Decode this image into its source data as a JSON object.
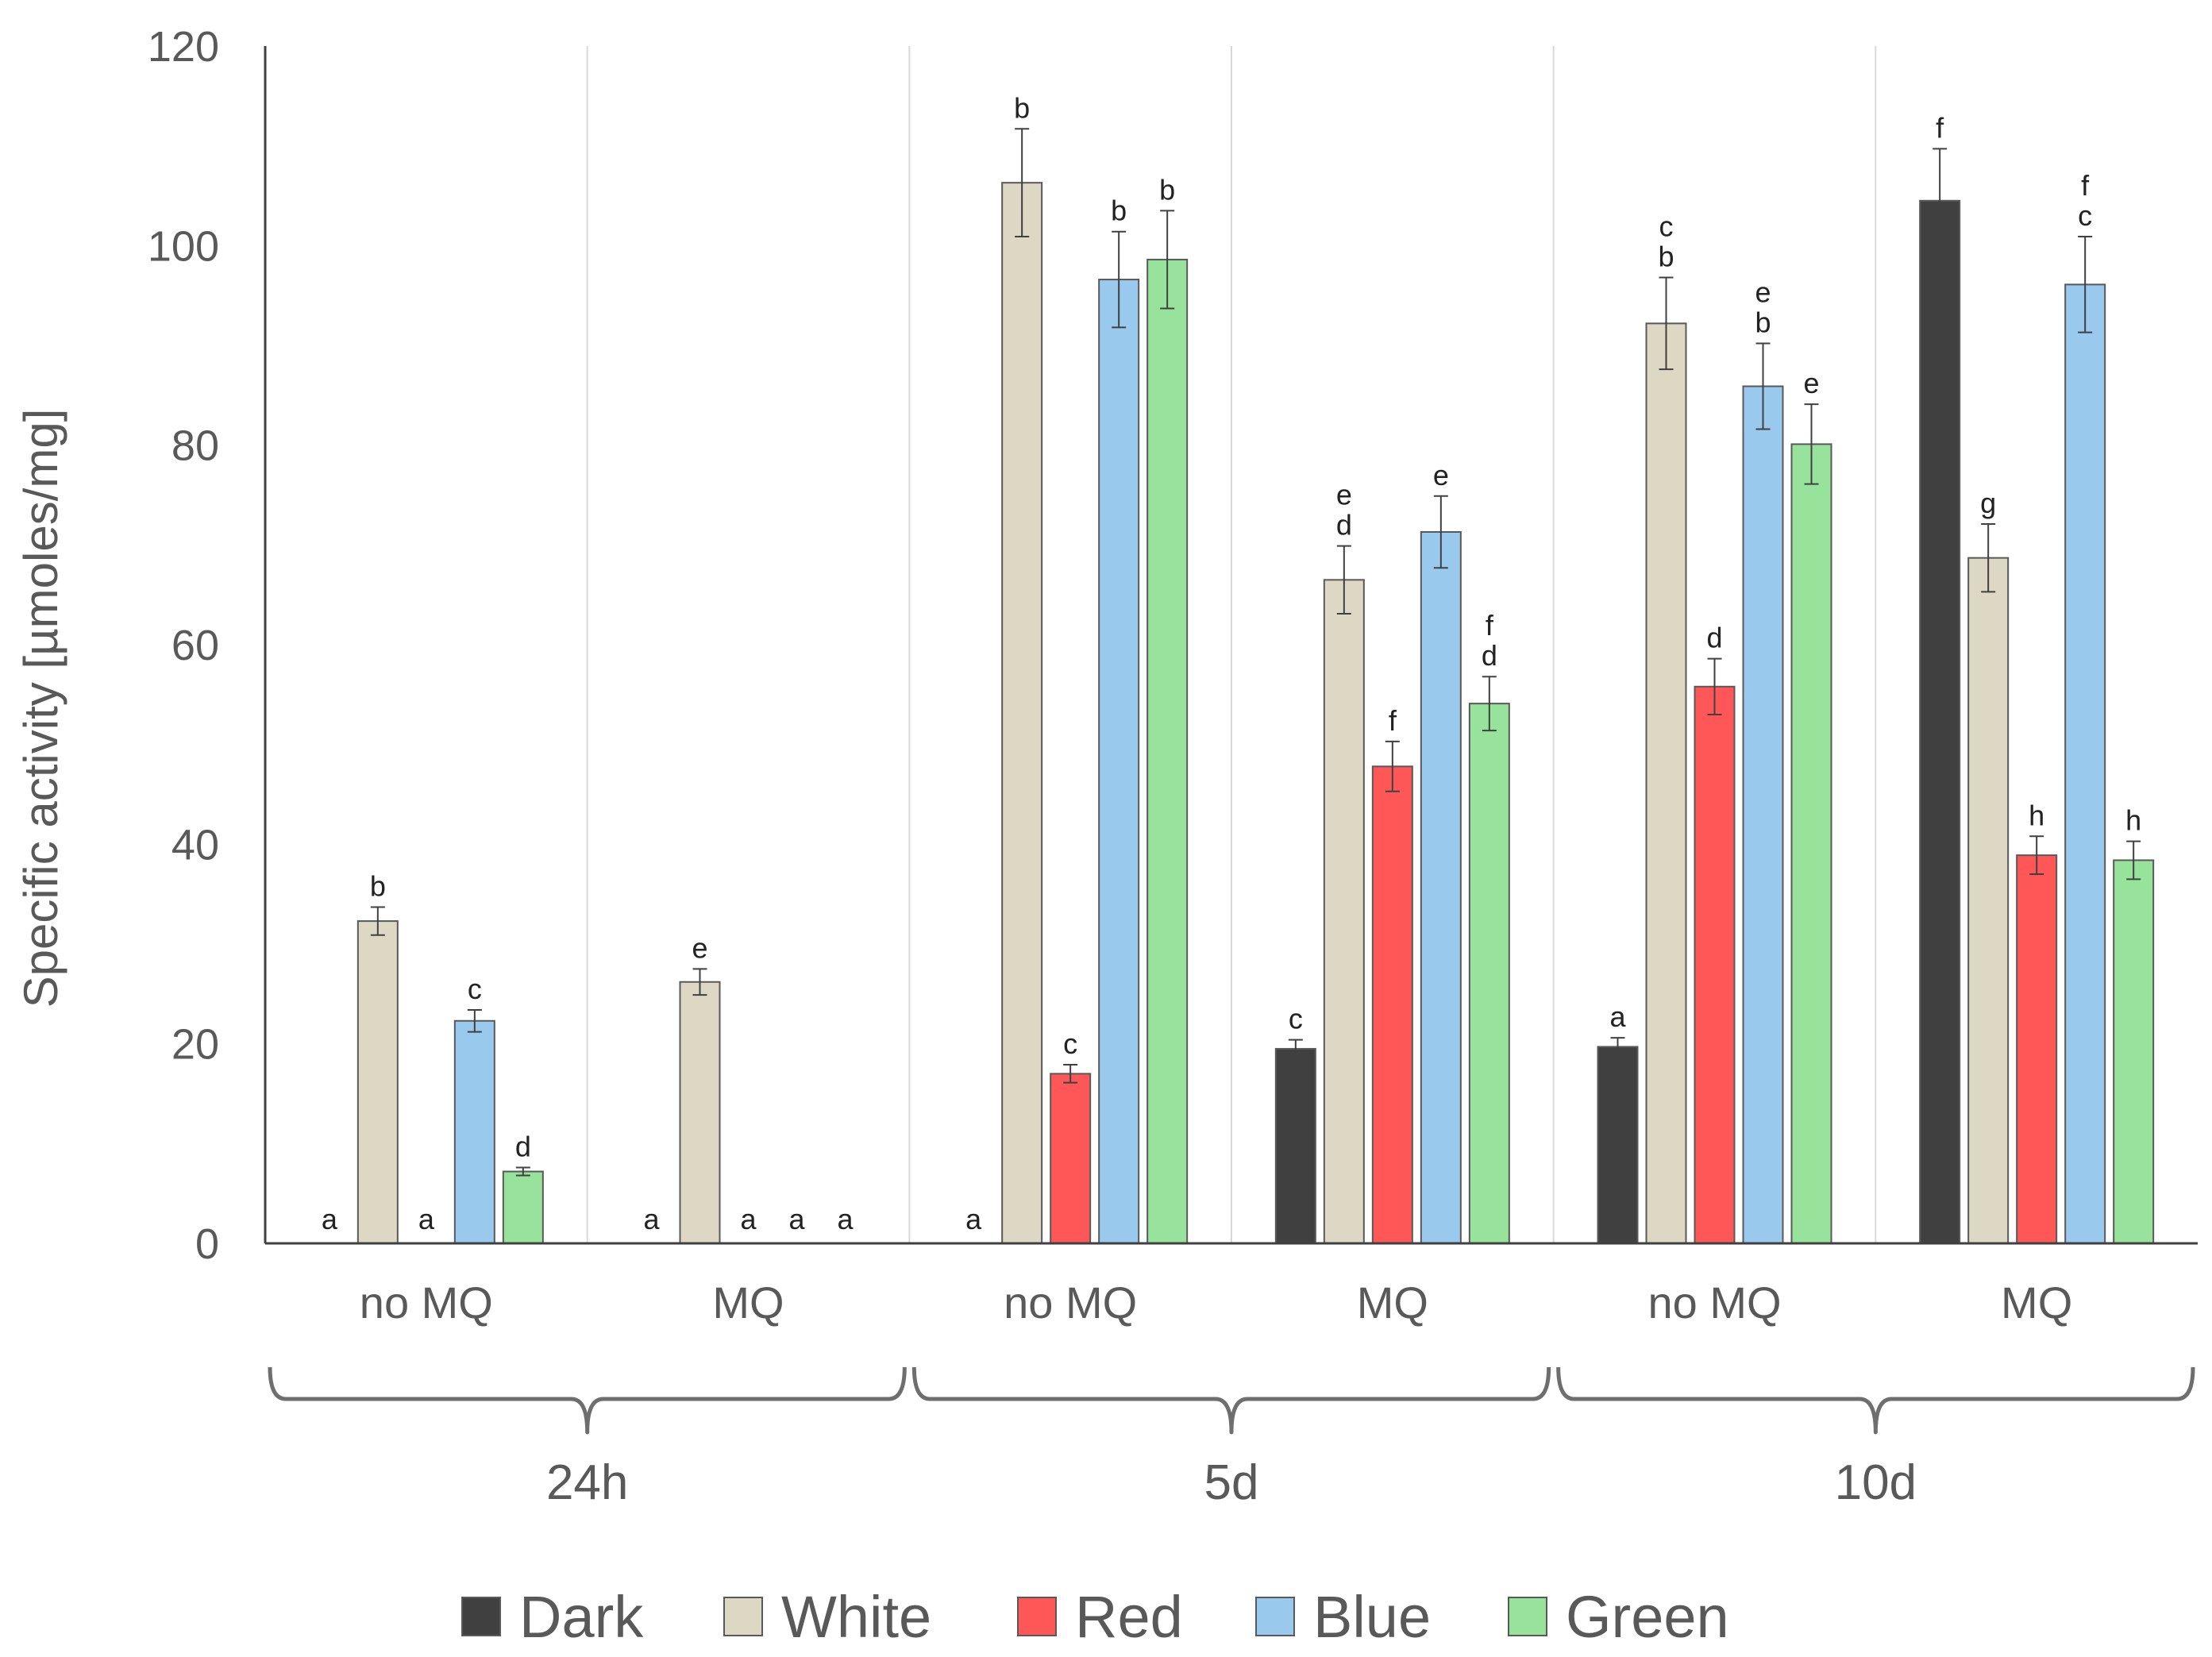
{
  "chart_data": {
    "type": "bar",
    "title": "",
    "xlabel": "",
    "ylabel": "Specific activity [µmoles/mg]",
    "ylim": [
      0,
      120
    ],
    "yticks": [
      0,
      20,
      40,
      60,
      80,
      100,
      120
    ],
    "grid": "vertical separators between groups",
    "legend_position": "bottom",
    "colors": {
      "Dark": "#404040",
      "White": "#ddd8c4",
      "Red": "#ff5757",
      "Blue": "#99c9ec",
      "Green": "#98e39c"
    },
    "time_points": [
      "24h",
      "5d",
      "10d"
    ],
    "categories": [
      "no MQ",
      "MQ",
      "no MQ",
      "MQ",
      "no MQ",
      "MQ"
    ],
    "category_time": [
      "24h",
      "24h",
      "5d",
      "5d",
      "10d",
      "10d"
    ],
    "series": [
      {
        "name": "Dark",
        "values": [
          0,
          0,
          0,
          19.5,
          19.7,
          104.5
        ],
        "errors": [
          0,
          0,
          0,
          0.9,
          0.9,
          5.2
        ],
        "letters": [
          "a",
          "a",
          "a",
          "c",
          "a",
          "f"
        ]
      },
      {
        "name": "White",
        "values": [
          32.3,
          26.2,
          106.3,
          66.5,
          92.2,
          68.7
        ],
        "errors": [
          1.4,
          1.3,
          5.4,
          3.4,
          4.6,
          3.4
        ],
        "letters": [
          "b",
          "e",
          "b",
          "e\nd",
          "c\nb",
          "g"
        ]
      },
      {
        "name": "Red",
        "values": [
          0,
          0,
          17.0,
          47.8,
          55.8,
          38.9
        ],
        "errors": [
          0,
          0,
          0.9,
          2.5,
          2.8,
          1.9
        ],
        "letters": [
          "a",
          "a",
          "c",
          "f",
          "d",
          "h"
        ]
      },
      {
        "name": "Blue",
        "values": [
          22.3,
          0,
          96.6,
          71.3,
          85.9,
          96.1
        ],
        "errors": [
          1.1,
          0,
          4.8,
          3.6,
          4.3,
          4.8
        ],
        "letters": [
          "c",
          "a",
          "b",
          "e",
          "e\nb",
          "f\nc"
        ]
      },
      {
        "name": "Green",
        "values": [
          7.2,
          0,
          98.6,
          54.1,
          80.1,
          38.4
        ],
        "errors": [
          0.4,
          0,
          4.9,
          2.7,
          4.0,
          1.9
        ],
        "letters": [
          "d",
          "a",
          "b",
          "f\nd",
          "e",
          "h"
        ]
      }
    ]
  }
}
